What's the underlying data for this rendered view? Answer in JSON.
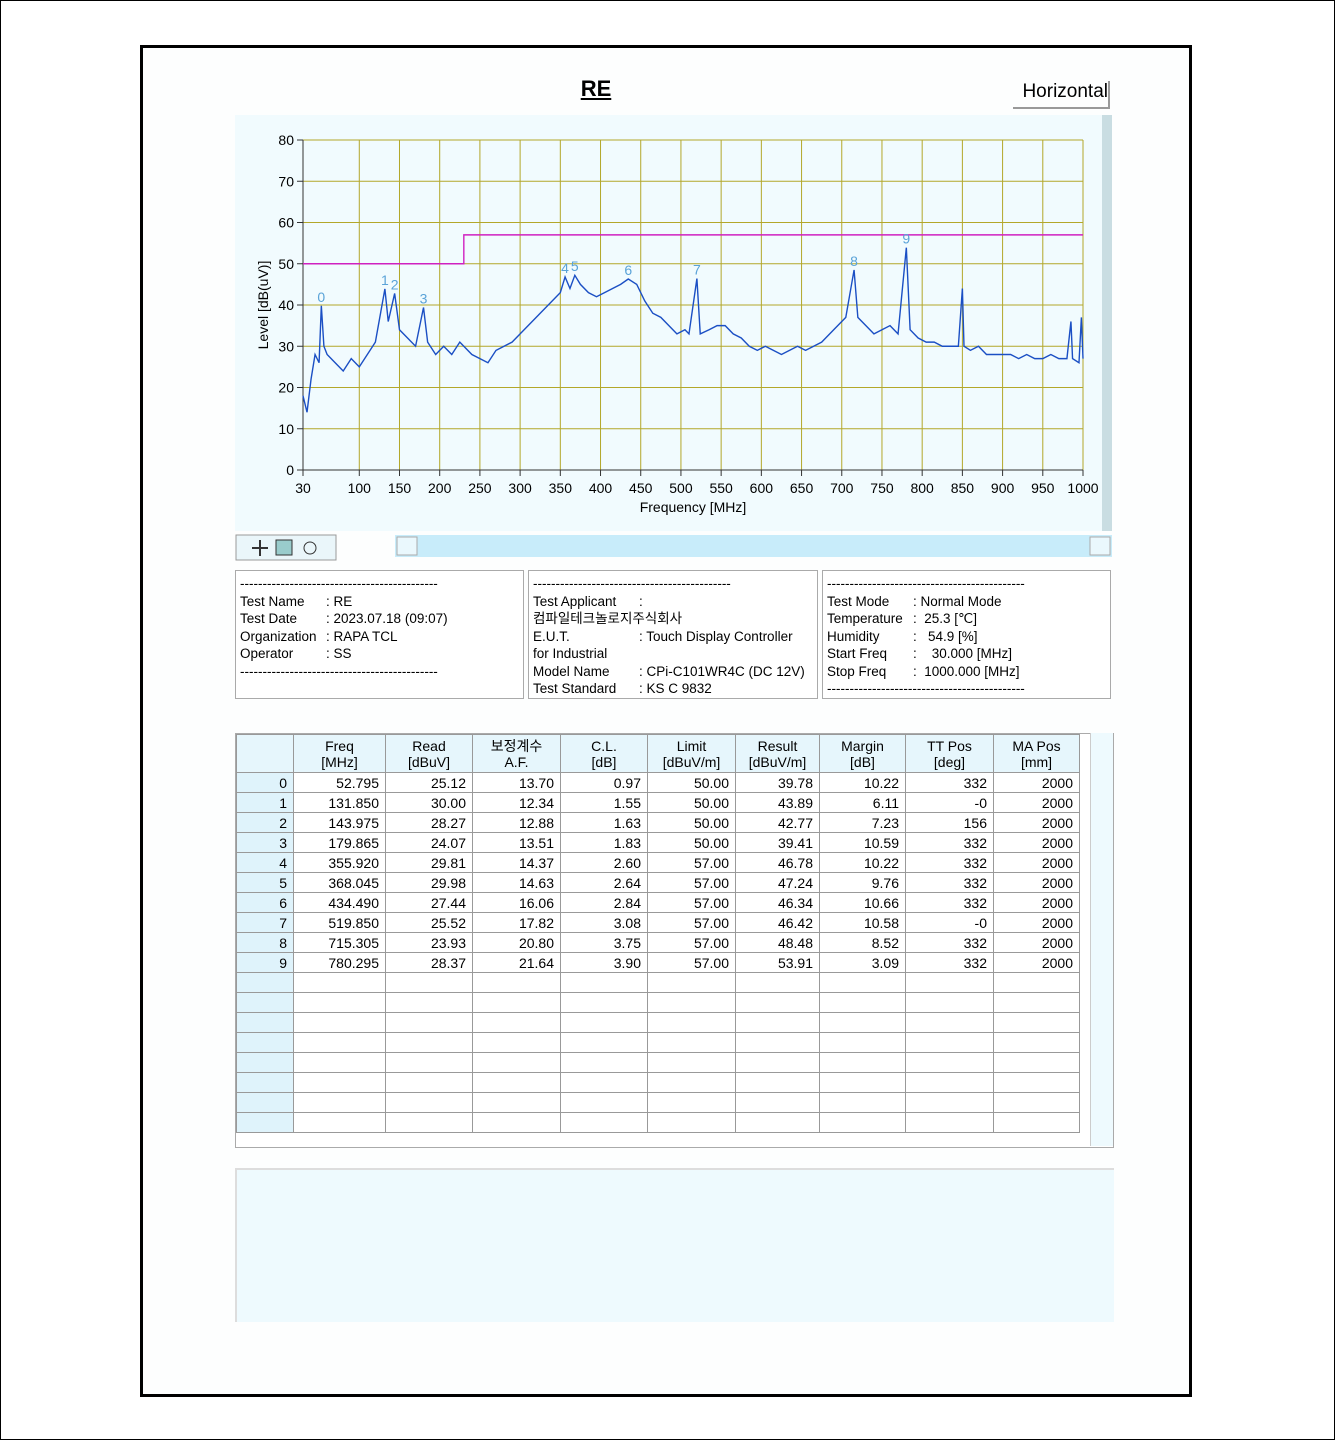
{
  "header": {
    "title": "RE",
    "polarization": "Horizontal"
  },
  "chart_data": {
    "type": "line",
    "xlabel": "Frequency [MHz]",
    "ylabel": "Level [dB(uV)]",
    "xlim": [
      30,
      1000
    ],
    "xticks": [
      30,
      100,
      150,
      200,
      250,
      300,
      350,
      400,
      450,
      500,
      550,
      600,
      650,
      700,
      750,
      800,
      850,
      900,
      950,
      1000
    ],
    "ylim": [
      0,
      80
    ],
    "yticks": [
      0,
      10,
      20,
      30,
      40,
      50,
      60,
      70,
      80
    ],
    "grid": true,
    "grid_color": "#b3a72a",
    "series": [
      {
        "color": "#1b4fc4",
        "x": [
          30,
          35,
          40,
          45,
          50,
          52.795,
          56,
          60,
          70,
          80,
          90,
          100,
          110,
          120,
          131.85,
          136,
          143.975,
          150,
          160,
          170,
          179.865,
          185,
          195,
          205,
          215,
          225,
          240,
          250,
          260,
          270,
          280,
          290,
          300,
          310,
          320,
          330,
          340,
          350,
          355.92,
          362,
          368.045,
          375,
          385,
          395,
          405,
          415,
          425,
          434.49,
          445,
          455,
          465,
          475,
          485,
          495,
          505,
          510,
          519.85,
          524,
          535,
          545,
          555,
          565,
          575,
          585,
          595,
          605,
          615,
          625,
          635,
          645,
          655,
          665,
          675,
          685,
          695,
          705,
          715.305,
          720,
          730,
          740,
          750,
          760,
          770,
          780.295,
          785,
          795,
          805,
          815,
          825,
          835,
          845,
          850,
          852,
          860,
          870,
          880,
          890,
          900,
          910,
          920,
          930,
          940,
          950,
          960,
          970,
          980,
          985,
          987,
          995,
          998,
          1000
        ],
        "values": [
          18,
          14,
          22,
          28,
          26,
          39.8,
          30,
          28,
          26,
          24,
          27,
          25,
          28,
          31,
          43.9,
          36,
          42.8,
          34,
          32,
          30,
          39.4,
          31,
          28,
          30,
          28,
          31,
          28,
          27,
          26,
          29,
          30,
          31,
          33,
          35,
          37,
          39,
          41,
          43,
          46.8,
          44,
          47.2,
          45,
          43,
          42,
          43,
          44,
          45,
          46.3,
          45,
          41,
          38,
          37,
          35,
          33,
          34,
          33,
          46.4,
          33,
          34,
          35,
          35,
          33,
          32,
          30,
          29,
          30,
          29,
          28,
          29,
          30,
          29,
          30,
          31,
          33,
          35,
          37,
          48.5,
          37,
          35,
          33,
          34,
          35,
          33,
          53.9,
          34,
          32,
          31,
          31,
          30,
          30,
          30,
          44,
          30,
          29,
          30,
          28,
          28,
          28,
          28,
          27,
          28,
          27,
          27,
          28,
          27,
          27,
          36,
          27,
          26,
          37,
          27
        ]
      },
      {
        "color": "#d020c0",
        "x": [
          30,
          230,
          230,
          1000
        ],
        "values": [
          50,
          50,
          57,
          57
        ]
      }
    ],
    "markers": {
      "color": "#5aa3d8",
      "labels": [
        "0",
        "1",
        "2",
        "3",
        "4",
        "5",
        "6",
        "7",
        "8",
        "9"
      ],
      "x": [
        52.795,
        131.85,
        143.975,
        179.865,
        355.92,
        368.045,
        434.49,
        519.85,
        715.305,
        780.295
      ],
      "y": [
        39.78,
        43.89,
        42.77,
        39.41,
        46.78,
        47.24,
        46.34,
        46.42,
        48.48,
        53.91
      ]
    }
  },
  "info": {
    "panels": [
      {
        "lines": [
          "--------------------------------------------",
          [
            "Test Name",
            ": RE"
          ],
          [
            "Test Date",
            ": 2023.07.18 (09:07)"
          ],
          [
            "Organization",
            ": RAPA TCL"
          ],
          [
            "Operator",
            ": SS"
          ],
          "--------------------------------------------"
        ]
      },
      {
        "lines": [
          "--------------------------------------------",
          [
            "Test Applicant",
            ":"
          ],
          "컴파일테크놀로지주식회사",
          [
            "E.U.T.",
            ": Touch Display Controller"
          ],
          "for Industrial",
          [
            "Model Name",
            ": CPi-C101WR4C (DC 12V)"
          ],
          [
            "Test Standard",
            ": KS C 9832"
          ]
        ]
      },
      {
        "lines": [
          "--------------------------------------------",
          [
            "Test Mode",
            ": Normal Mode"
          ],
          [
            "Temperature",
            ":  25.3 [℃]"
          ],
          [
            "Humidity",
            ":   54.9 [%]"
          ],
          [
            "Start Freq",
            ":    30.000 [MHz]"
          ],
          [
            "Stop Freq",
            ":  1000.000 [MHz]"
          ],
          "--------------------------------------------"
        ]
      }
    ]
  },
  "table": {
    "columns": [
      [
        "Freq",
        "[MHz]"
      ],
      [
        "Read",
        "[dBuV]"
      ],
      [
        "보정계수",
        "A.F."
      ],
      [
        "C.L.",
        "[dB]"
      ],
      [
        "Limit",
        "[dBuV/m]"
      ],
      [
        "Result",
        "[dBuV/m]"
      ],
      [
        "Margin",
        "[dB]"
      ],
      [
        "TT Pos",
        "[deg]"
      ],
      [
        "MA Pos",
        "[mm]"
      ]
    ],
    "index": [
      "0",
      "1",
      "2",
      "3",
      "4",
      "5",
      "6",
      "7",
      "8",
      "9"
    ],
    "rows": [
      [
        "52.795",
        "25.12",
        "13.70",
        "0.97",
        "50.00",
        "39.78",
        "10.22",
        "332",
        "2000"
      ],
      [
        "131.850",
        "30.00",
        "12.34",
        "1.55",
        "50.00",
        "43.89",
        "6.11",
        "-0",
        "2000"
      ],
      [
        "143.975",
        "28.27",
        "12.88",
        "1.63",
        "50.00",
        "42.77",
        "7.23",
        "156",
        "2000"
      ],
      [
        "179.865",
        "24.07",
        "13.51",
        "1.83",
        "50.00",
        "39.41",
        "10.59",
        "332",
        "2000"
      ],
      [
        "355.920",
        "29.81",
        "14.37",
        "2.60",
        "57.00",
        "46.78",
        "10.22",
        "332",
        "2000"
      ],
      [
        "368.045",
        "29.98",
        "14.63",
        "2.64",
        "57.00",
        "47.24",
        "9.76",
        "332",
        "2000"
      ],
      [
        "434.490",
        "27.44",
        "16.06",
        "2.84",
        "57.00",
        "46.34",
        "10.66",
        "332",
        "2000"
      ],
      [
        "519.850",
        "25.52",
        "17.82",
        "3.08",
        "57.00",
        "46.42",
        "10.58",
        "-0",
        "2000"
      ],
      [
        "715.305",
        "23.93",
        "20.80",
        "3.75",
        "57.00",
        "48.48",
        "8.52",
        "332",
        "2000"
      ],
      [
        "780.295",
        "28.37",
        "21.64",
        "3.90",
        "57.00",
        "53.91",
        "3.09",
        "332",
        "2000"
      ]
    ]
  }
}
